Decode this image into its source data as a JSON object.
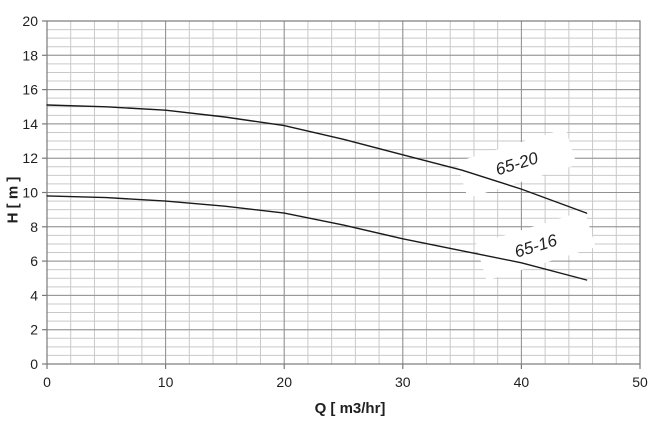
{
  "chart_data": {
    "type": "line",
    "title": "",
    "xlabel": "Q [ m3/hr]",
    "ylabel": "H [ m ]",
    "xlim": [
      0,
      50
    ],
    "ylim": [
      0,
      20
    ],
    "x_major_ticks": [
      0,
      10,
      20,
      30,
      40,
      50
    ],
    "x_minor_step": 2,
    "y_major_ticks": [
      0,
      2,
      4,
      6,
      8,
      10,
      12,
      14,
      16,
      18,
      20
    ],
    "y_minor_step": 0.5,
    "grid": true,
    "legend_position": "inline-curve-labels",
    "series": [
      {
        "name": "65-20",
        "x": [
          0,
          5,
          10,
          15,
          20,
          25,
          30,
          35,
          40,
          45.5
        ],
        "values": [
          15.1,
          15.0,
          14.8,
          14.4,
          13.9,
          13.1,
          12.2,
          11.3,
          10.2,
          8.8
        ],
        "label": {
          "text": "65-20",
          "x": 39.6,
          "y": 11.7,
          "rotation": -17
        }
      },
      {
        "name": "65-16",
        "x": [
          0,
          5,
          10,
          15,
          20,
          25,
          30,
          35,
          40,
          45.5
        ],
        "values": [
          9.8,
          9.7,
          9.5,
          9.2,
          8.8,
          8.1,
          7.3,
          6.6,
          5.9,
          4.9
        ],
        "label": {
          "text": "65-16",
          "x": 41.2,
          "y": 6.9,
          "rotation": -17
        }
      }
    ],
    "colors": {
      "curve": "#1a1a1a",
      "grid_minor": "#c9c9c9",
      "grid_major": "#919191",
      "axis": "#7a7a7a",
      "text": "#1f1f1f"
    }
  }
}
